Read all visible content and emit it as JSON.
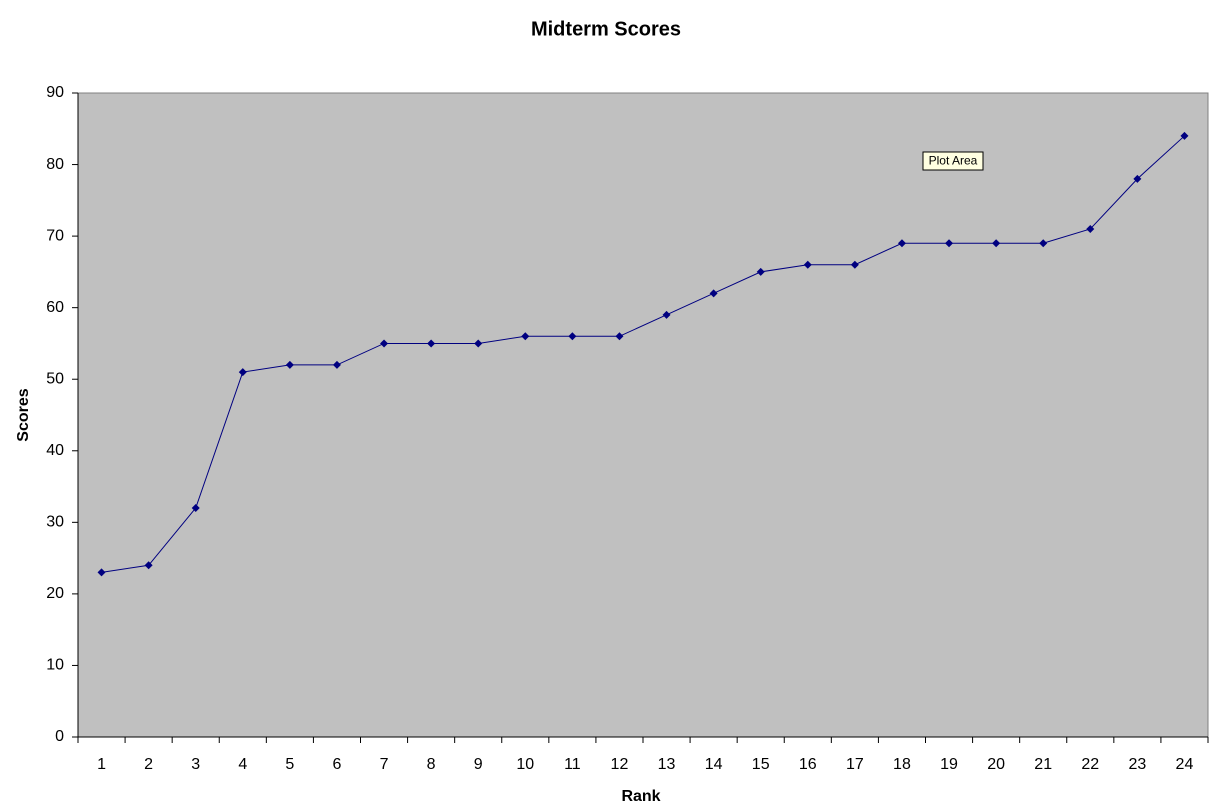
{
  "chart_data": {
    "type": "line",
    "title": "Midterm Scores",
    "x_label": "Rank",
    "y_label": "Scores",
    "categories": [
      "1",
      "2",
      "3",
      "4",
      "5",
      "6",
      "7",
      "8",
      "9",
      "10",
      "11",
      "12",
      "13",
      "14",
      "15",
      "16",
      "17",
      "18",
      "19",
      "20",
      "21",
      "22",
      "23",
      "24"
    ],
    "series": [
      {
        "name": "Scores",
        "color": "#000080",
        "values": [
          23,
          24,
          32,
          51,
          52,
          52,
          55,
          55,
          55,
          56,
          56,
          56,
          59,
          62,
          65,
          66,
          66,
          69,
          69,
          69,
          69,
          71,
          78,
          84
        ]
      }
    ],
    "ylim": [
      0,
      90
    ],
    "yticks": [
      0,
      10,
      20,
      30,
      40,
      50,
      60,
      70,
      80,
      90
    ],
    "grid": false,
    "plot_background": "#c0c0c0",
    "tooltip": "Plot Area"
  }
}
